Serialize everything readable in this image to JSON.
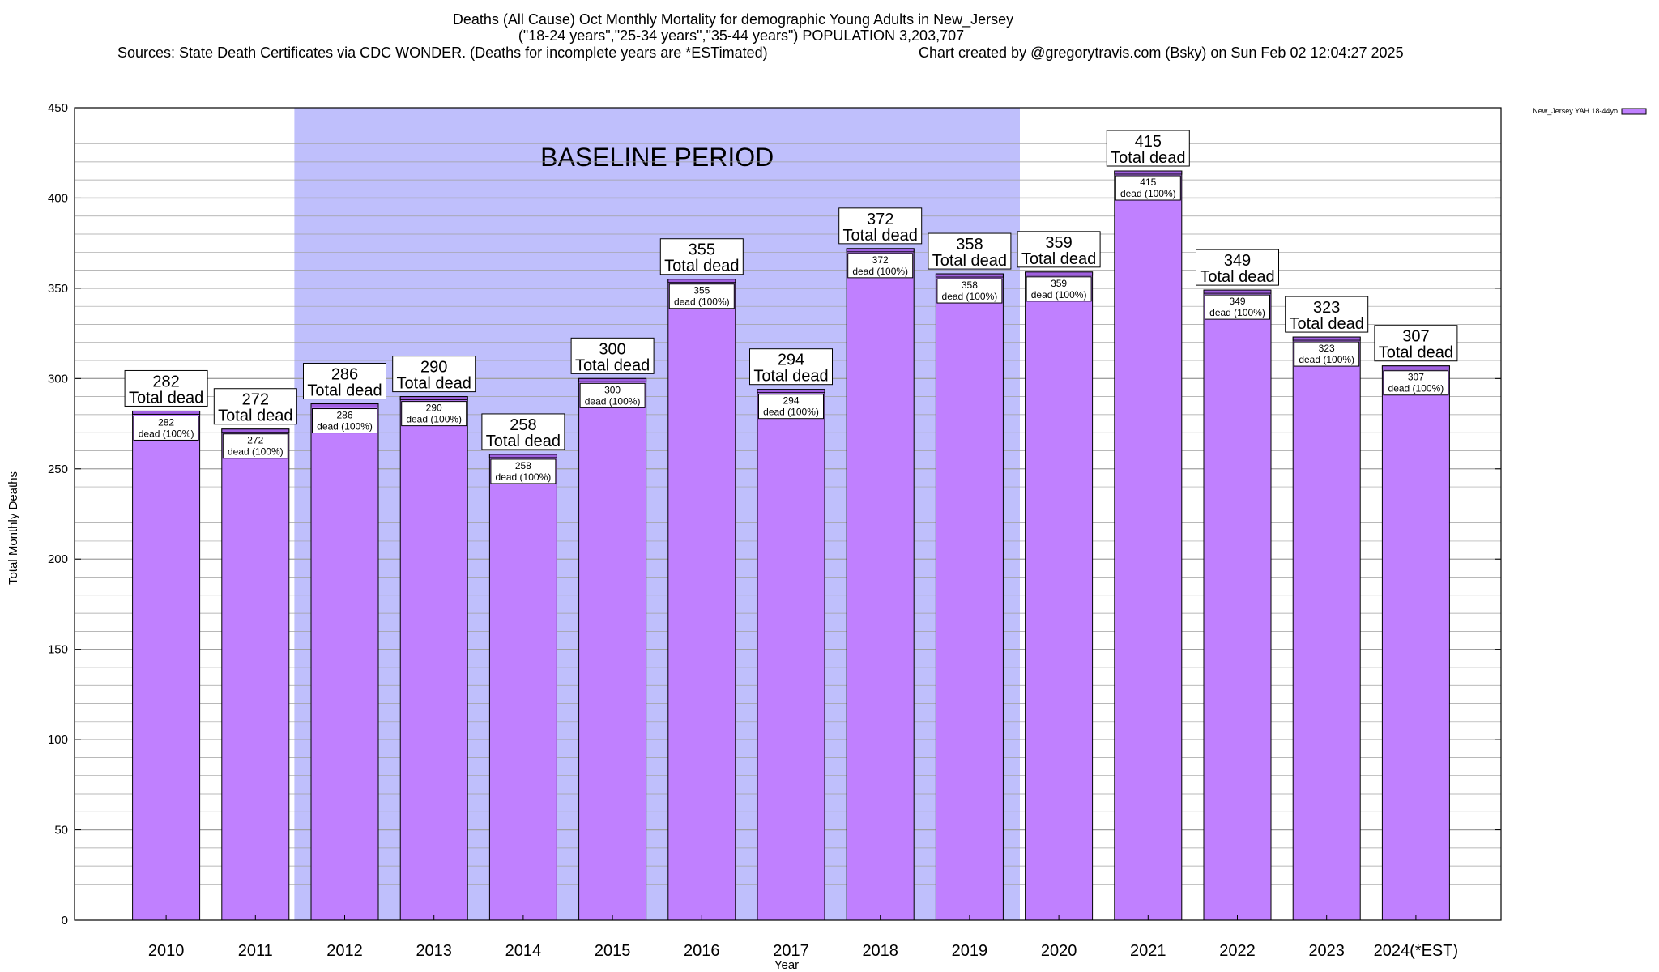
{
  "colors": {
    "bar_fill": "#c080ff",
    "bar_top_band": "#a060e0",
    "baseline_fill": "#bfbffc",
    "grid": "#a0a0a0",
    "axis": "#000000"
  },
  "chart_data": {
    "type": "bar",
    "title_lines": [
      "Deaths (All Cause) Oct Monthly Mortality for demographic Young Adults in New_Jersey",
      "(\"18-24 years\",\"25-34 years\",\"35-44 years\") POPULATION 3,203,707"
    ],
    "sources_text": "Sources: State Death Certificates via CDC WONDER. (Deaths for incomplete years are *ESTimated)",
    "credit_text": "Chart created by @gregorytravis.com (Bsky) on Sun Feb 02 12:04:27 2025",
    "xlabel": "Year",
    "ylabel": "Total Monthly Deaths",
    "ylim": [
      0,
      450
    ],
    "yticks": [
      0,
      50,
      100,
      150,
      200,
      250,
      300,
      350,
      400,
      450
    ],
    "grid": true,
    "legend_position": "top-right",
    "series": [
      {
        "name": "New_Jersey YAH 18-44yo",
        "values": [
          282,
          272,
          286,
          290,
          258,
          300,
          355,
          294,
          372,
          358,
          359,
          415,
          349,
          323,
          307
        ]
      }
    ],
    "categories": [
      "2010",
      "2011",
      "2012",
      "2013",
      "2014",
      "2015",
      "2016",
      "2017",
      "2018",
      "2019",
      "2020",
      "2021",
      "2022",
      "2023",
      "2024(*EST)"
    ],
    "annotation_total_label": "Total dead",
    "annotation_share_label": "dead (100%)",
    "baseline_region": {
      "label": "BASELINE PERIOD",
      "from_category": "2012",
      "to_category": "2019"
    }
  }
}
